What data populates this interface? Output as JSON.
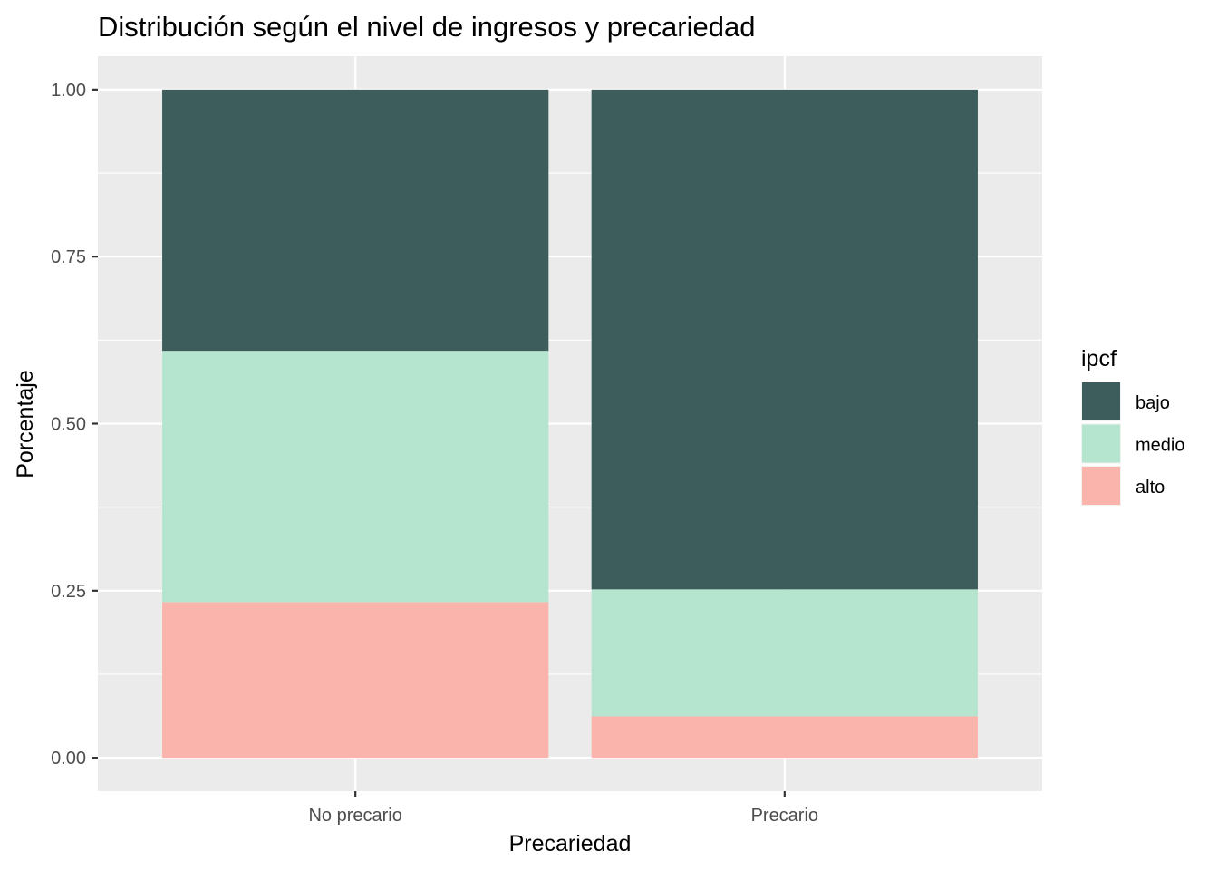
{
  "chart_data": {
    "type": "bar",
    "stacked": true,
    "title": "Distribución según el nivel de ingresos y precariedad",
    "xlabel": "Precariedad",
    "ylabel": "Porcentaje",
    "categories": [
      "No precario",
      "Precario"
    ],
    "series": [
      {
        "name": "bajo",
        "color": "#3d5c5c",
        "values": [
          0.391,
          0.748
        ]
      },
      {
        "name": "medio",
        "color": "#b5e5cf",
        "values": [
          0.376,
          0.19
        ]
      },
      {
        "name": "alto",
        "color": "#fab4ac",
        "values": [
          0.233,
          0.062
        ]
      }
    ],
    "stack_order_bottom_to_top": [
      "alto",
      "medio",
      "bajo"
    ],
    "ylim": [
      -0.05,
      1.05
    ],
    "yticks": [
      0.0,
      0.25,
      0.5,
      0.75,
      1.0
    ],
    "ytick_labels": [
      "0.00",
      "0.25",
      "0.50",
      "0.75",
      "1.00"
    ],
    "grid": true,
    "panel_background": "#ebebeb",
    "legend": {
      "title": "ipcf",
      "placement": "right",
      "entries": [
        "bajo",
        "medio",
        "alto"
      ]
    }
  }
}
